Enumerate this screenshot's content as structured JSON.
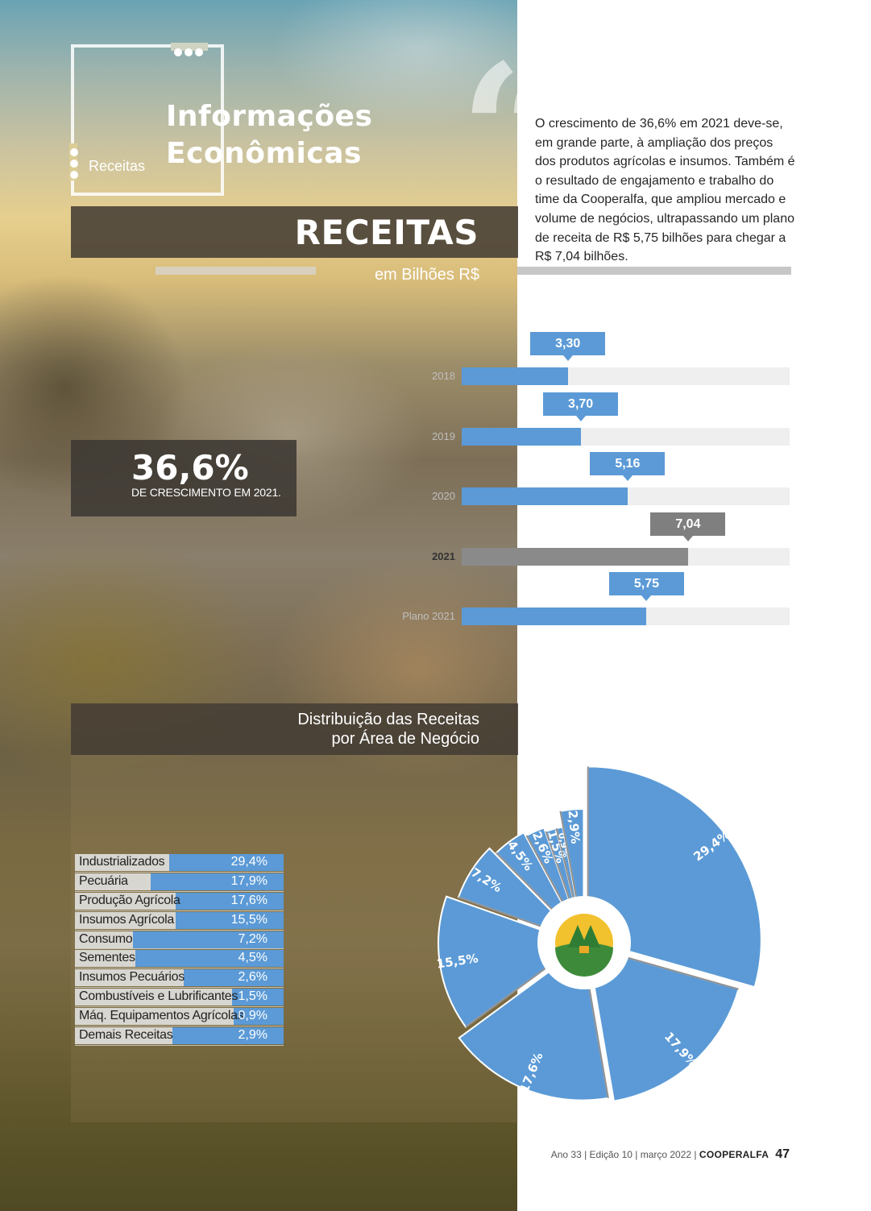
{
  "header": {
    "breadcrumb": "Receitas",
    "title_line1": "Informações",
    "title_line2": "Econômicas"
  },
  "quote": "O crescimento de 36,6% em 2021 deve-se, em grande parte, à ampliação dos preços dos produtos agrícolas e insumos. Também é o resultado de engajamento e trabalho do time da Cooperalfa, que ampliou mercado e volume de negócios, ultrapassando um plano de receita de R$ 5,75 bilhões para chegar a R$ 7,04 bilhões.",
  "section": {
    "title": "RECEITAS",
    "subtitle": "em Bilhões R$"
  },
  "growth": {
    "value": "36,6%",
    "caption": "DE CRESCIMENTO EM 2021."
  },
  "chart_data": [
    {
      "type": "bar",
      "orientation": "horizontal",
      "categories": [
        "2018",
        "2019",
        "2020",
        "2021",
        "Plano 2021"
      ],
      "values": [
        3.3,
        3.7,
        5.16,
        7.04,
        5.75
      ],
      "value_labels": [
        "3,30",
        "3,70",
        "5,16",
        "7,04",
        "5,75"
      ],
      "highlight": "2021",
      "xlim": [
        0,
        10.2
      ],
      "title": "RECEITAS",
      "subtitle": "em Bilhões R$",
      "colors": {
        "bar": "#5b9ad6",
        "highlight": "#8a8a8a",
        "track": "#efefef"
      }
    },
    {
      "type": "pie",
      "title": "Distribuição das Receitas por Área de Negócio",
      "categories": [
        "Industrializados",
        "Pecuária",
        "Produção Agrícola",
        "Insumos Agrícola",
        "Consumo",
        "Sementes",
        "Insumos Pecuários",
        "Combustíveis e Lubrificantes",
        "Máq. Equipamentos Agrícolas",
        "Demais Receitas"
      ],
      "values": [
        29.4,
        17.9,
        17.6,
        15.5,
        7.2,
        4.5,
        2.6,
        1.5,
        0.9,
        2.9
      ],
      "value_labels": [
        "29,4%",
        "17,9%",
        "17,6%",
        "15,5%",
        "7,2%",
        "4,5%",
        "2,6%",
        "1,5%",
        "0,9%",
        "2,9%"
      ],
      "colors": {
        "slice": "#5b9ad6",
        "separator": "#8f8f8f"
      }
    }
  ],
  "distribution": {
    "title_line1": "Distribuição das Receitas",
    "title_line2": "por Área de Negócio"
  },
  "footer": {
    "issue": "Ano 33 | Edição 10 | março 2022 | ",
    "brand": "COOPERALFA",
    "page": "47"
  }
}
